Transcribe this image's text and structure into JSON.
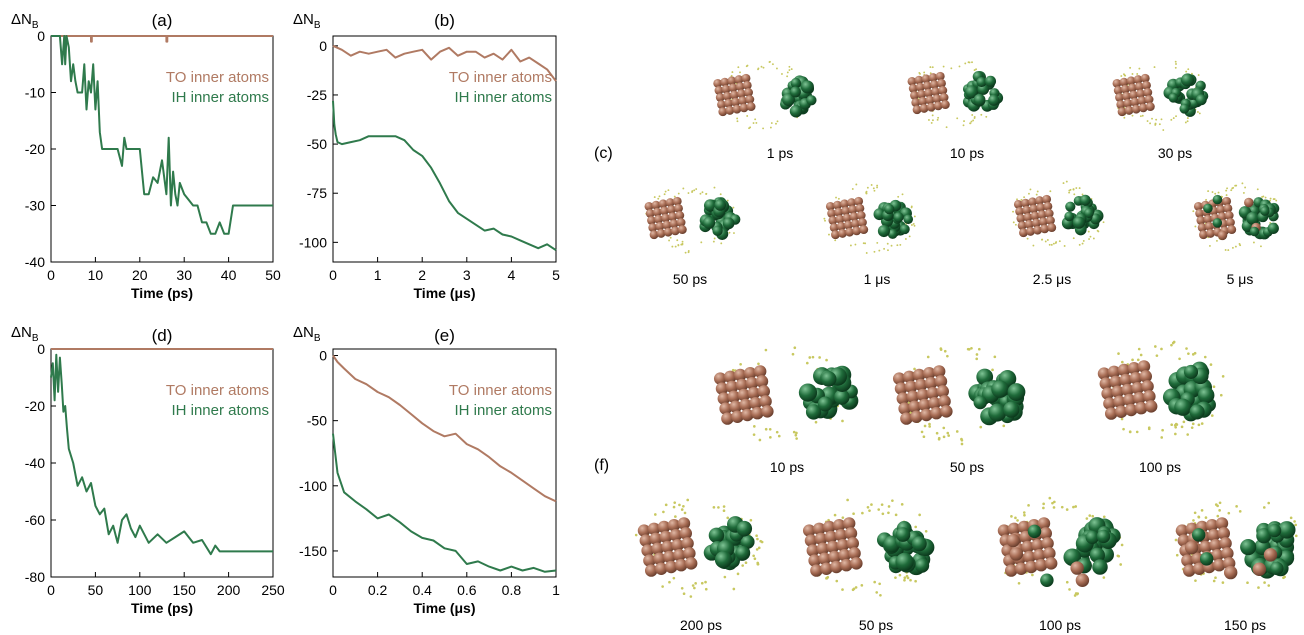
{
  "colors": {
    "TO": "#b07a63",
    "IH": "#2f7a4c",
    "brown_atom": "#a86d55",
    "green_atom": "#1f6b3a",
    "dot": "#c8c860"
  },
  "chart_data": [
    {
      "id": "a",
      "type": "line",
      "panel_label": "(a)",
      "ylabel": "ΔN_B",
      "xlabel": "Time (ps)",
      "xlim": [
        0,
        50
      ],
      "ylim": [
        -40,
        0
      ],
      "xticks": [
        0,
        10,
        20,
        30,
        40,
        50
      ],
      "xticklabels": [
        "0",
        "10",
        "20",
        "30",
        "40",
        "50"
      ],
      "yticks": [
        0,
        -10,
        -20,
        -30,
        -40
      ],
      "yticklabels": [
        "0",
        "-10",
        "-20",
        "-30",
        "-40"
      ],
      "legend": [
        "TO inner atoms",
        "IH inner atoms"
      ],
      "series": [
        {
          "name": "TO inner atoms",
          "color": "#b07a63",
          "x": [
            0,
            3,
            3,
            3.2,
            3.2,
            9,
            9,
            9.2,
            9.2,
            26,
            26,
            26.2,
            26.2,
            50
          ],
          "y": [
            0,
            0,
            -1,
            -1,
            0,
            0,
            -1,
            -1,
            0,
            0,
            -1,
            -1,
            0,
            0
          ]
        },
        {
          "name": "IH inner atoms",
          "color": "#2f7a4c",
          "x": [
            0,
            2,
            2.5,
            3,
            3.2,
            3.5,
            4,
            4.5,
            5,
            5.5,
            6,
            7,
            7.5,
            8,
            8.5,
            9,
            9.5,
            10,
            10.5,
            11,
            11.5,
            12,
            13,
            15,
            16,
            16.5,
            17,
            17.5,
            18,
            19,
            20,
            21,
            22,
            23,
            24,
            25,
            26,
            26.5,
            27,
            27.5,
            28,
            28.5,
            29,
            30,
            31,
            32,
            33,
            34,
            35,
            36,
            37,
            38,
            39,
            40,
            41,
            42,
            50
          ],
          "y": [
            0,
            0,
            -5,
            0,
            -5,
            0,
            -2,
            -8,
            -5,
            -8,
            -10,
            -10,
            -5,
            -13,
            -8,
            -10,
            -5,
            -13,
            -8,
            -17,
            -20,
            -20,
            -20,
            -20,
            -23,
            -18,
            -20,
            -20,
            -20,
            -20,
            -20,
            -28,
            -28,
            -25,
            -26,
            -22,
            -28,
            -18,
            -30,
            -24,
            -28,
            -30,
            -26,
            -28,
            -29,
            -30,
            -30,
            -33,
            -33,
            -35,
            -35,
            -33,
            -35,
            -35,
            -30,
            -30,
            -30
          ]
        }
      ]
    },
    {
      "id": "b",
      "type": "line",
      "panel_label": "(b)",
      "ylabel": "ΔN_B",
      "xlabel": "Time (μs)",
      "xlim": [
        0,
        5
      ],
      "ylim": [
        -110,
        5
      ],
      "xticks": [
        0,
        1,
        2,
        3,
        4,
        5
      ],
      "xticklabels": [
        "0",
        "1",
        "2",
        "3",
        "4",
        "5"
      ],
      "yticks": [
        0,
        -25,
        -50,
        -75,
        -100
      ],
      "yticklabels": [
        "0",
        "-25",
        "-50",
        "-75",
        "-100"
      ],
      "legend": [
        "TO inner atoms",
        "IH inner atoms"
      ],
      "series": [
        {
          "name": "TO inner atoms",
          "color": "#b07a63",
          "x": [
            0,
            0.2,
            0.4,
            0.6,
            0.8,
            1.0,
            1.2,
            1.4,
            1.6,
            1.8,
            2.0,
            2.2,
            2.4,
            2.6,
            2.8,
            3.0,
            3.2,
            3.4,
            3.6,
            3.8,
            4.0,
            4.2,
            4.4,
            4.6,
            4.8,
            5.0
          ],
          "y": [
            0,
            -2,
            -5,
            -3,
            -4,
            -3,
            -2,
            -6,
            -4,
            -3,
            -2,
            -7,
            -3,
            -1,
            -5,
            -3,
            -3,
            -6,
            -4,
            -7,
            -2,
            -8,
            -6,
            -9,
            -12,
            -18
          ]
        },
        {
          "name": "IH inner atoms",
          "color": "#2f7a4c",
          "x": [
            0,
            0.03,
            0.06,
            0.1,
            0.2,
            0.4,
            0.6,
            0.8,
            1.0,
            1.2,
            1.4,
            1.6,
            1.8,
            2.0,
            2.2,
            2.4,
            2.6,
            2.8,
            3.0,
            3.2,
            3.4,
            3.6,
            3.8,
            4.0,
            4.2,
            4.4,
            4.6,
            4.8,
            5.0
          ],
          "y": [
            -28,
            -40,
            -45,
            -49,
            -50,
            -49,
            -48,
            -46,
            -46,
            -46,
            -46,
            -48,
            -53,
            -56,
            -62,
            -70,
            -79,
            -85,
            -88,
            -91,
            -94,
            -93,
            -96,
            -97,
            -99,
            -101,
            -103,
            -101,
            -104
          ]
        }
      ]
    },
    {
      "id": "d",
      "type": "line",
      "panel_label": "(d)",
      "ylabel": "ΔN_B",
      "xlabel": "Time (ps)",
      "xlim": [
        0,
        250
      ],
      "ylim": [
        -80,
        0
      ],
      "xticks": [
        0,
        50,
        100,
        150,
        200,
        250
      ],
      "xticklabels": [
        "0",
        "50",
        "100",
        "150",
        "200",
        "250"
      ],
      "yticks": [
        0,
        -20,
        -40,
        -60,
        -80
      ],
      "yticklabels": [
        "0",
        "-20",
        "-40",
        "-60",
        "-80"
      ],
      "legend": [
        "TO inner atoms",
        "IH inner atoms"
      ],
      "series": [
        {
          "name": "TO inner atoms",
          "color": "#b07a63",
          "x": [
            0,
            250
          ],
          "y": [
            0,
            0
          ]
        },
        {
          "name": "IH inner atoms",
          "color": "#2f7a4c",
          "x": [
            0,
            2,
            4,
            6,
            8,
            10,
            12,
            14,
            16,
            18,
            20,
            25,
            30,
            35,
            40,
            45,
            50,
            55,
            60,
            65,
            70,
            75,
            80,
            85,
            90,
            95,
            100,
            110,
            120,
            130,
            140,
            150,
            160,
            170,
            180,
            185,
            190,
            250
          ],
          "y": [
            -10,
            -5,
            -18,
            -2,
            -15,
            -3,
            -12,
            -22,
            -20,
            -28,
            -35,
            -40,
            -48,
            -45,
            -50,
            -47,
            -55,
            -58,
            -56,
            -65,
            -62,
            -68,
            -60,
            -58,
            -63,
            -66,
            -62,
            -68,
            -65,
            -68,
            -66,
            -64,
            -68,
            -67,
            -72,
            -69,
            -71,
            -71
          ]
        }
      ]
    },
    {
      "id": "e",
      "type": "line",
      "panel_label": "(e)",
      "ylabel": "ΔN_B",
      "xlabel": "Time (μs)",
      "xlim": [
        0,
        1
      ],
      "ylim": [
        -170,
        5
      ],
      "xticks": [
        0,
        0.2,
        0.4,
        0.6,
        0.8,
        1
      ],
      "xticklabels": [
        "0",
        "0.2",
        "0.4",
        "0.6",
        "0.8",
        "1"
      ],
      "yticks": [
        0,
        -50,
        -100,
        -150
      ],
      "yticklabels": [
        "0",
        "-50",
        "-100",
        "-150"
      ],
      "legend": [
        "TO inner atoms",
        "IH inner atoms"
      ],
      "series": [
        {
          "name": "TO inner atoms",
          "color": "#b07a63",
          "x": [
            0,
            0.02,
            0.05,
            0.1,
            0.15,
            0.2,
            0.25,
            0.3,
            0.35,
            0.4,
            0.45,
            0.5,
            0.55,
            0.6,
            0.65,
            0.7,
            0.75,
            0.8,
            0.85,
            0.9,
            0.95,
            1.0
          ],
          "y": [
            0,
            -5,
            -10,
            -18,
            -22,
            -28,
            -32,
            -38,
            -45,
            -52,
            -58,
            -62,
            -60,
            -68,
            -72,
            -78,
            -85,
            -90,
            -96,
            -102,
            -108,
            -112
          ]
        },
        {
          "name": "IH inner atoms",
          "color": "#2f7a4c",
          "x": [
            0,
            0.01,
            0.02,
            0.05,
            0.1,
            0.15,
            0.2,
            0.25,
            0.3,
            0.35,
            0.4,
            0.45,
            0.5,
            0.55,
            0.6,
            0.65,
            0.7,
            0.75,
            0.8,
            0.85,
            0.9,
            0.95,
            1.0
          ],
          "y": [
            -60,
            -75,
            -90,
            -105,
            -112,
            -118,
            -125,
            -122,
            -128,
            -135,
            -140,
            -142,
            -148,
            -150,
            -160,
            -158,
            -162,
            -165,
            -162,
            -165,
            -163,
            -166,
            -165
          ]
        }
      ]
    }
  ],
  "snapshots": {
    "c": {
      "label": "(c)",
      "row1": [
        {
          "time": "1 ps"
        },
        {
          "time": "10 ps"
        },
        {
          "time": "30 ps"
        }
      ],
      "row2": [
        {
          "time": "50 ps"
        },
        {
          "time": "1 μs"
        },
        {
          "time": "2.5 μs"
        },
        {
          "time": "5 μs"
        }
      ]
    },
    "f": {
      "label": "(f)",
      "row1": [
        {
          "time": "10 ps"
        },
        {
          "time": "50 ps"
        },
        {
          "time": "100 ps"
        }
      ],
      "row2": [
        {
          "time": "200 ps"
        },
        {
          "time": "50 ps"
        },
        {
          "time": "100 ps"
        },
        {
          "time": "150 ps"
        }
      ]
    }
  }
}
